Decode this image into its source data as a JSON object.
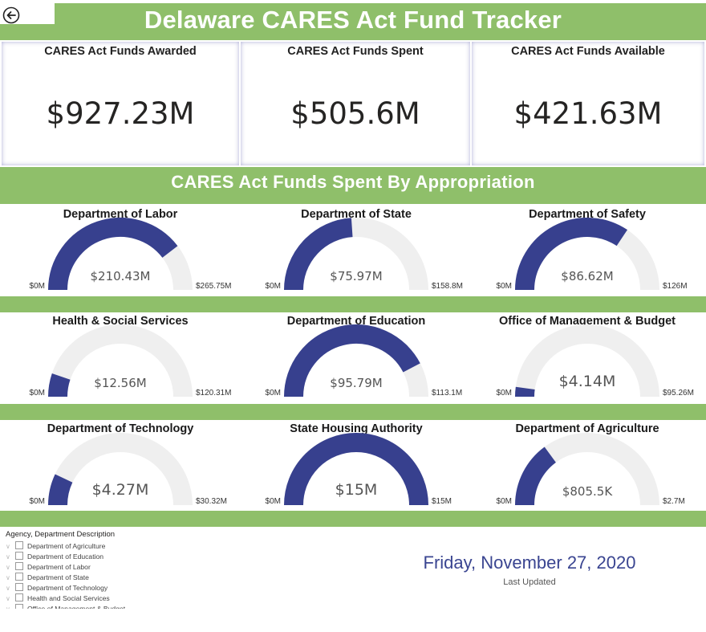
{
  "header": {
    "title": "Delaware CARES Act Fund Tracker"
  },
  "kpis": {
    "awarded": {
      "label": "CARES Act Funds Awarded",
      "value": "$927.23M"
    },
    "spent": {
      "label": "CARES Act Funds Spent",
      "value": "$505.6M"
    },
    "available": {
      "label": "CARES Act Funds Available",
      "value": "$421.63M"
    }
  },
  "section": {
    "title": "CARES Act Funds Spent By Appropriation"
  },
  "colors": {
    "green": "#8fbf6a",
    "gauge_fill": "#37408e",
    "gauge_track": "#efefef",
    "date": "#3a4591"
  },
  "icons": {
    "back": "back-arrow-icon"
  },
  "gauges": [
    {
      "title": "Department of Labor",
      "value_label": "$210.43M",
      "min": "$0M",
      "max": "$265.75M",
      "fraction": 0.7918
    },
    {
      "title": "Department of State",
      "value_label": "$75.97M",
      "min": "$0M",
      "max": "$158.8M",
      "fraction": 0.4784
    },
    {
      "title": "Department of Safety",
      "value_label": "$86.62M",
      "min": "$0M",
      "max": "$126M",
      "fraction": 0.6875
    },
    {
      "title": "Health & Social Services",
      "value_label": "$12.56M",
      "min": "$0M",
      "max": "$120.31M",
      "fraction": 0.1044
    },
    {
      "title": "Department of Education",
      "value_label": "$95.79M",
      "min": "$0M",
      "max": "$113.1M",
      "fraction": 0.8469
    },
    {
      "title": "Office of Management & Budget",
      "value_label": "$4.14M",
      "min": "$0M",
      "max": "$95.26M",
      "fraction": 0.0435
    },
    {
      "title": "Department of Technology",
      "value_label": "$4.27M",
      "min": "$0M",
      "max": "$30.32M",
      "fraction": 0.1408
    },
    {
      "title": "State Housing Authority",
      "value_label": "$15M",
      "min": "$0M",
      "max": "$15M",
      "fraction": 1.0
    },
    {
      "title": "Department of Agriculture",
      "value_label": "$805.5K",
      "min": "$0M",
      "max": "$2.7M",
      "fraction": 0.2983
    }
  ],
  "slicer": {
    "title": "Agency, Department Description",
    "items": [
      "Department of Agriculture",
      "Department of Education",
      "Department of Labor",
      "Department of State",
      "Department of Technology",
      "Health and Social Services",
      "Office of Management & Budget"
    ]
  },
  "footer": {
    "date": "Friday, November 27, 2020",
    "last_updated_label": "Last Updated"
  }
}
